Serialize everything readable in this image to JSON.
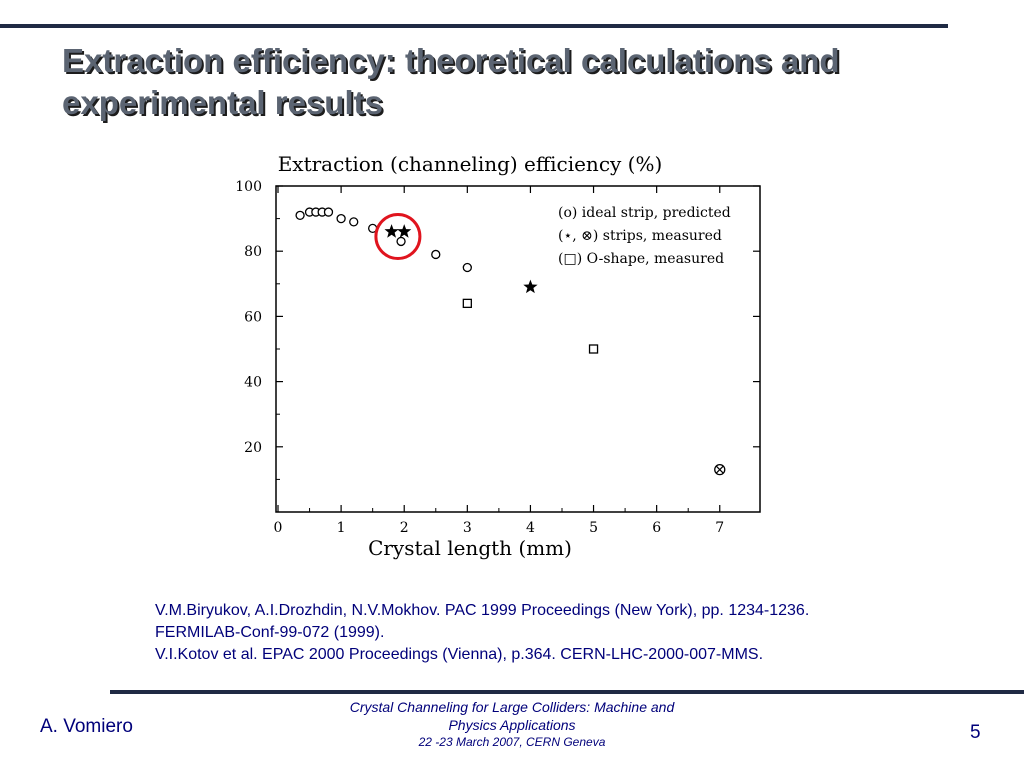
{
  "slide": {
    "title_line1": "Extraction efficiency: theoretical calculations and",
    "title_line2": "experimental results"
  },
  "chart_data": {
    "type": "scatter",
    "title": "Extraction (channeling) efficiency (%)",
    "xlabel": "Crystal length (mm)",
    "ylabel": "",
    "xlim": [
      0,
      7.4
    ],
    "ylim": [
      0,
      100
    ],
    "x_ticks": [
      "0",
      "1",
      "2",
      "3",
      "4",
      "5",
      "6",
      "7"
    ],
    "y_ticks": [
      "20",
      "40",
      "60",
      "80",
      "100"
    ],
    "grid": false,
    "legend_position": "top-right",
    "legend": [
      "(o) ideal strip, predicted",
      "(⋆, ⊗) strips, measured",
      "(□) O-shape, measured"
    ],
    "series": [
      {
        "marker": "circle",
        "points": [
          [
            0.35,
            91
          ],
          [
            0.5,
            92
          ],
          [
            0.6,
            92
          ],
          [
            0.7,
            92
          ],
          [
            0.8,
            92
          ],
          [
            1.0,
            90
          ],
          [
            1.2,
            89
          ],
          [
            1.5,
            87
          ],
          [
            1.95,
            83
          ],
          [
            2.5,
            79
          ],
          [
            3.0,
            75
          ]
        ]
      },
      {
        "marker": "star",
        "points": [
          [
            1.8,
            86
          ],
          [
            2.0,
            86
          ],
          [
            4.0,
            69
          ]
        ]
      },
      {
        "marker": "circle-x",
        "points": [
          [
            7.0,
            13
          ]
        ]
      },
      {
        "marker": "square",
        "points": [
          [
            3.0,
            64
          ],
          [
            5.0,
            50
          ]
        ]
      }
    ],
    "annotation": "red circle highlighting measured points near 2 mm",
    "accent_color": "#e0141e"
  },
  "references": {
    "line1": "V.M.Biryukov, A.I.Drozhdin, N.V.Mokhov. PAC 1999 Proceedings (New York), pp. 1234-1236.",
    "line2": "FERMILAB-Conf-99-072 (1999).",
    "line3": "V.I.Kotov et al. EPAC 2000 Proceedings (Vienna), p.364. CERN-LHC-2000-007-MMS."
  },
  "footer": {
    "author": "A. Vomiero",
    "conference_line1": "Crystal Channeling for Large Colliders: Machine and",
    "conference_line2": "Physics Applications",
    "conference_line3": "22 -23  March 2007, CERN Geneva",
    "page_number": "5"
  }
}
